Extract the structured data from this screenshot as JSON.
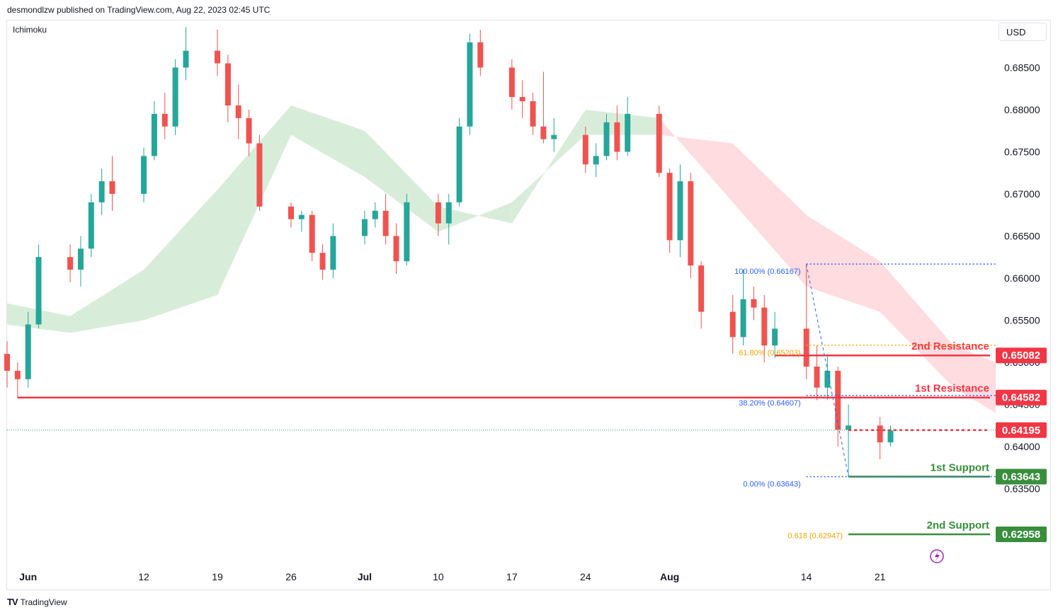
{
  "header": {
    "publisher_line": "desmondlzw published on TradingView.com, Aug 22, 2023 02:45 UTC"
  },
  "indicator_label": "Ichimoku",
  "currency_button": "USD",
  "footer": {
    "logo_glyph": "TV",
    "brand": "TradingView"
  },
  "colors": {
    "up": "#26a69a",
    "down": "#ef5350",
    "cloud_bull": "#c8e6c9",
    "cloud_bear": "#ffcdd2",
    "resistance": "#f23645",
    "support": "#388e3c",
    "fib_blue": "#2962ff",
    "fib_orange": "#f0a30a",
    "current_price_line": "#089981"
  },
  "chart_data": {
    "type": "candlestick",
    "symbol_currency": "USD",
    "y_axis": {
      "ticks": [
        "0.68500",
        "0.68000",
        "0.67500",
        "0.67000",
        "0.66500",
        "0.66000",
        "0.65500",
        "0.65000",
        "0.64500",
        "0.64000",
        "0.63500"
      ],
      "range": [
        0.6258,
        0.6905
      ]
    },
    "x_axis": {
      "ticks": [
        "Jun",
        "12",
        "19",
        "26",
        "Jul",
        "10",
        "17",
        "24",
        "Aug",
        "14",
        "21"
      ],
      "range": [
        "2023-05-30",
        "2023-09-01"
      ]
    },
    "candles": [
      {
        "date": "2023-05-29",
        "o": 0.652,
        "h": 0.6535,
        "l": 0.6505,
        "c": 0.651
      },
      {
        "date": "2023-05-30",
        "o": 0.651,
        "h": 0.6525,
        "l": 0.647,
        "c": 0.649
      },
      {
        "date": "2023-05-31",
        "o": 0.649,
        "h": 0.65,
        "l": 0.6458,
        "c": 0.648
      },
      {
        "date": "2023-06-01",
        "o": 0.648,
        "h": 0.656,
        "l": 0.647,
        "c": 0.6545
      },
      {
        "date": "2023-06-02",
        "o": 0.6545,
        "h": 0.664,
        "l": 0.654,
        "c": 0.6625
      },
      {
        "date": "2023-06-05",
        "o": 0.6625,
        "h": 0.664,
        "l": 0.6595,
        "c": 0.661
      },
      {
        "date": "2023-06-06",
        "o": 0.661,
        "h": 0.665,
        "l": 0.659,
        "c": 0.6635
      },
      {
        "date": "2023-06-07",
        "o": 0.6635,
        "h": 0.67,
        "l": 0.6625,
        "c": 0.669
      },
      {
        "date": "2023-06-08",
        "o": 0.669,
        "h": 0.673,
        "l": 0.6675,
        "c": 0.6715
      },
      {
        "date": "2023-06-09",
        "o": 0.6715,
        "h": 0.6745,
        "l": 0.668,
        "c": 0.67
      },
      {
        "date": "2023-06-12",
        "o": 0.67,
        "h": 0.6755,
        "l": 0.669,
        "c": 0.6745
      },
      {
        "date": "2023-06-13",
        "o": 0.6745,
        "h": 0.681,
        "l": 0.674,
        "c": 0.6795
      },
      {
        "date": "2023-06-14",
        "o": 0.6795,
        "h": 0.682,
        "l": 0.6765,
        "c": 0.678
      },
      {
        "date": "2023-06-15",
        "o": 0.678,
        "h": 0.686,
        "l": 0.677,
        "c": 0.685
      },
      {
        "date": "2023-06-16",
        "o": 0.685,
        "h": 0.6898,
        "l": 0.6835,
        "c": 0.687
      },
      {
        "date": "2023-06-19",
        "o": 0.687,
        "h": 0.6895,
        "l": 0.684,
        "c": 0.6855
      },
      {
        "date": "2023-06-20",
        "o": 0.6855,
        "h": 0.6865,
        "l": 0.6785,
        "c": 0.6805
      },
      {
        "date": "2023-06-21",
        "o": 0.6805,
        "h": 0.683,
        "l": 0.6765,
        "c": 0.679
      },
      {
        "date": "2023-06-22",
        "o": 0.679,
        "h": 0.68,
        "l": 0.6745,
        "c": 0.676
      },
      {
        "date": "2023-06-23",
        "o": 0.676,
        "h": 0.677,
        "l": 0.668,
        "c": 0.6685
      },
      {
        "date": "2023-06-26",
        "o": 0.6685,
        "h": 0.669,
        "l": 0.666,
        "c": 0.667
      },
      {
        "date": "2023-06-27",
        "o": 0.667,
        "h": 0.668,
        "l": 0.6655,
        "c": 0.6675
      },
      {
        "date": "2023-06-28",
        "o": 0.6675,
        "h": 0.668,
        "l": 0.662,
        "c": 0.663
      },
      {
        "date": "2023-06-29",
        "o": 0.663,
        "h": 0.664,
        "l": 0.6598,
        "c": 0.661
      },
      {
        "date": "2023-06-30",
        "o": 0.661,
        "h": 0.6665,
        "l": 0.66,
        "c": 0.665
      },
      {
        "date": "2023-07-03",
        "o": 0.665,
        "h": 0.668,
        "l": 0.664,
        "c": 0.667
      },
      {
        "date": "2023-07-04",
        "o": 0.667,
        "h": 0.669,
        "l": 0.666,
        "c": 0.668
      },
      {
        "date": "2023-07-05",
        "o": 0.668,
        "h": 0.67,
        "l": 0.664,
        "c": 0.665
      },
      {
        "date": "2023-07-06",
        "o": 0.665,
        "h": 0.6665,
        "l": 0.6605,
        "c": 0.662
      },
      {
        "date": "2023-07-07",
        "o": 0.662,
        "h": 0.67,
        "l": 0.6615,
        "c": 0.669
      },
      {
        "date": "2023-07-10",
        "o": 0.669,
        "h": 0.67,
        "l": 0.665,
        "c": 0.6665
      },
      {
        "date": "2023-07-11",
        "o": 0.6665,
        "h": 0.67,
        "l": 0.664,
        "c": 0.669
      },
      {
        "date": "2023-07-12",
        "o": 0.669,
        "h": 0.679,
        "l": 0.6685,
        "c": 0.678
      },
      {
        "date": "2023-07-13",
        "o": 0.678,
        "h": 0.689,
        "l": 0.677,
        "c": 0.688
      },
      {
        "date": "2023-07-14",
        "o": 0.688,
        "h": 0.6895,
        "l": 0.684,
        "c": 0.685
      },
      {
        "date": "2023-07-17",
        "o": 0.685,
        "h": 0.686,
        "l": 0.68,
        "c": 0.6815
      },
      {
        "date": "2023-07-18",
        "o": 0.6815,
        "h": 0.6835,
        "l": 0.679,
        "c": 0.681
      },
      {
        "date": "2023-07-19",
        "o": 0.681,
        "h": 0.682,
        "l": 0.677,
        "c": 0.678
      },
      {
        "date": "2023-07-20",
        "o": 0.678,
        "h": 0.6845,
        "l": 0.676,
        "c": 0.6765
      },
      {
        "date": "2023-07-21",
        "o": 0.6765,
        "h": 0.679,
        "l": 0.675,
        "c": 0.677
      },
      {
        "date": "2023-07-24",
        "o": 0.677,
        "h": 0.678,
        "l": 0.6725,
        "c": 0.6735
      },
      {
        "date": "2023-07-25",
        "o": 0.6735,
        "h": 0.676,
        "l": 0.672,
        "c": 0.6745
      },
      {
        "date": "2023-07-26",
        "o": 0.6745,
        "h": 0.6795,
        "l": 0.674,
        "c": 0.6785
      },
      {
        "date": "2023-07-27",
        "o": 0.6785,
        "h": 0.6805,
        "l": 0.674,
        "c": 0.675
      },
      {
        "date": "2023-07-28",
        "o": 0.675,
        "h": 0.6815,
        "l": 0.6745,
        "c": 0.6795
      },
      {
        "date": "2023-07-31",
        "o": 0.6795,
        "h": 0.6805,
        "l": 0.672,
        "c": 0.6725
      },
      {
        "date": "2023-08-01",
        "o": 0.6725,
        "h": 0.673,
        "l": 0.663,
        "c": 0.6645
      },
      {
        "date": "2023-08-02",
        "o": 0.6645,
        "h": 0.6735,
        "l": 0.6625,
        "c": 0.6715
      },
      {
        "date": "2023-08-03",
        "o": 0.6715,
        "h": 0.6725,
        "l": 0.66,
        "c": 0.6615
      },
      {
        "date": "2023-08-04",
        "o": 0.6615,
        "h": 0.662,
        "l": 0.654,
        "c": 0.656
      },
      {
        "date": "2023-08-07",
        "o": 0.656,
        "h": 0.658,
        "l": 0.651,
        "c": 0.653
      },
      {
        "date": "2023-08-08",
        "o": 0.653,
        "h": 0.661,
        "l": 0.652,
        "c": 0.6575
      },
      {
        "date": "2023-08-09",
        "o": 0.6575,
        "h": 0.659,
        "l": 0.655,
        "c": 0.6565
      },
      {
        "date": "2023-08-10",
        "o": 0.6565,
        "h": 0.658,
        "l": 0.65,
        "c": 0.652
      },
      {
        "date": "2023-08-11",
        "o": 0.652,
        "h": 0.656,
        "l": 0.6505,
        "c": 0.654
      },
      {
        "date": "2023-08-14",
        "o": 0.654,
        "h": 0.6617,
        "l": 0.648,
        "c": 0.6495
      },
      {
        "date": "2023-08-15",
        "o": 0.6495,
        "h": 0.652,
        "l": 0.6455,
        "c": 0.647
      },
      {
        "date": "2023-08-16",
        "o": 0.647,
        "h": 0.651,
        "l": 0.6455,
        "c": 0.649
      },
      {
        "date": "2023-08-17",
        "o": 0.649,
        "h": 0.6495,
        "l": 0.64,
        "c": 0.642
      },
      {
        "date": "2023-08-18",
        "o": 0.642,
        "h": 0.645,
        "l": 0.6364,
        "c": 0.6425
      },
      {
        "date": "2023-08-21",
        "o": 0.6425,
        "h": 0.6435,
        "l": 0.6385,
        "c": 0.6405
      },
      {
        "date": "2023-08-22",
        "o": 0.6405,
        "h": 0.6425,
        "l": 0.64,
        "c": 0.6419
      }
    ],
    "ichimoku_cloud": {
      "dates": [
        "2023-05-30",
        "2023-06-05",
        "2023-06-12",
        "2023-06-19",
        "2023-06-26",
        "2023-07-03",
        "2023-07-10",
        "2023-07-17",
        "2023-07-24",
        "2023-07-31",
        "2023-08-07",
        "2023-08-14",
        "2023-08-21",
        "2023-08-28",
        "2023-09-01"
      ],
      "span_a": [
        0.657,
        0.6555,
        0.661,
        0.6705,
        0.6805,
        0.6775,
        0.6685,
        0.6665,
        0.68,
        0.679,
        0.669,
        0.659,
        0.656,
        0.647,
        0.644
      ],
      "span_b": [
        0.6545,
        0.6535,
        0.655,
        0.658,
        0.677,
        0.672,
        0.6655,
        0.669,
        0.677,
        0.677,
        0.676,
        0.6675,
        0.662,
        0.652,
        0.65
      ]
    },
    "levels": [
      {
        "name": "2nd Resistance",
        "value": 0.65082,
        "label": "0.65082"
      },
      {
        "name": "1st Resistance",
        "value": 0.64582,
        "label": "0.64582"
      },
      {
        "name": "1st Support",
        "value": 0.63643,
        "label": "0.63643"
      },
      {
        "name": "2nd Support",
        "value": 0.62958,
        "label": "0.62958"
      }
    ],
    "current_price": {
      "value": 0.64195,
      "label": "0.64195"
    },
    "fibonacci": [
      {
        "label": "100.00% (0.66167)",
        "value": 0.66167
      },
      {
        "label": "61.80% (0.65203)",
        "value": 0.65203
      },
      {
        "label": "38.20% (0.64607)",
        "value": 0.64607
      },
      {
        "label": "0.00% (0.63643)",
        "value": 0.63643
      }
    ],
    "fib_extension": {
      "label": "0.618 (0.62947)",
      "value": 0.62947
    }
  }
}
